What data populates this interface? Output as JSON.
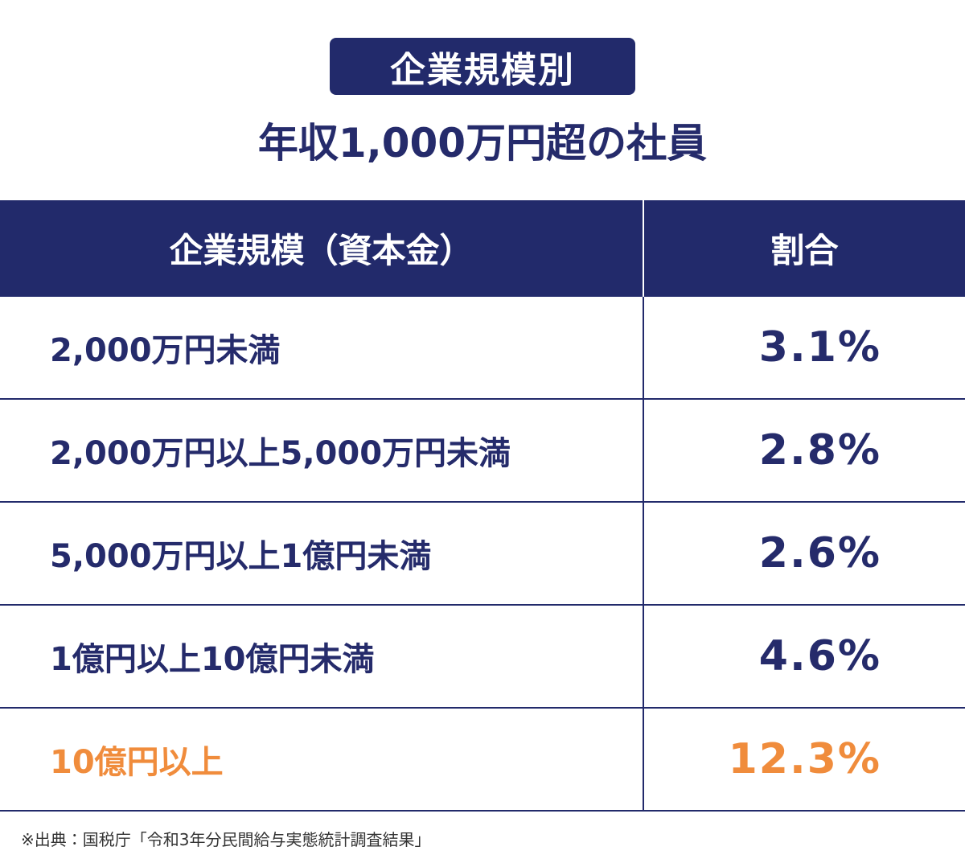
{
  "header": {
    "badge": "企業規模別",
    "title": "年収1,000万円超の社員"
  },
  "table": {
    "columns": [
      "企業規模（資本金）",
      "割合"
    ],
    "rows": [
      [
        "2,000万円未満",
        "3.1%"
      ],
      [
        "2,000万円以上5,000万円未満",
        "2.8%"
      ],
      [
        "5,000万円以上1億円未満",
        "2.6%"
      ],
      [
        "1億円以上10億円未満",
        "4.6%"
      ],
      [
        "10億円以上",
        "12.3%"
      ]
    ]
  },
  "source": "※出典：国税庁「令和3年分民間給与実態統計調査結果」"
}
